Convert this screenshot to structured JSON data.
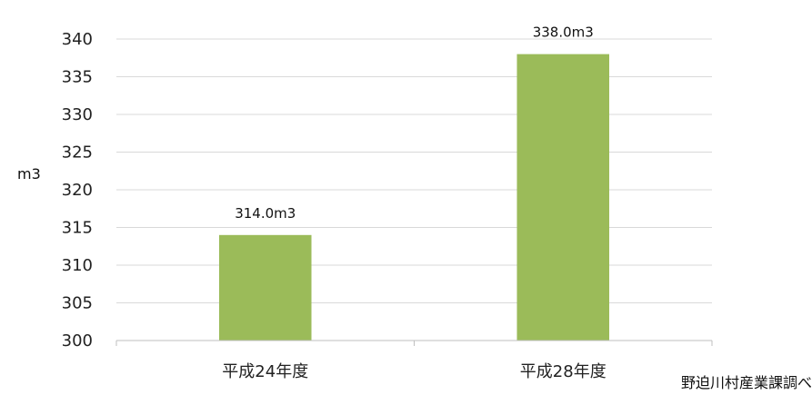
{
  "chart_data": {
    "type": "bar",
    "categories": [
      "平成24年度",
      "平成28年度"
    ],
    "values": [
      314.0,
      338.0
    ],
    "data_labels": [
      "314.0m3",
      "338.0m3"
    ],
    "ylabel": "m3",
    "ylim": [
      300,
      340
    ],
    "yticks": [
      300,
      305,
      310,
      315,
      320,
      325,
      330,
      335,
      340
    ],
    "grid": true,
    "legend": "none",
    "bar_color": "#9bbb59",
    "source": "野迫川村産業課調べ"
  }
}
